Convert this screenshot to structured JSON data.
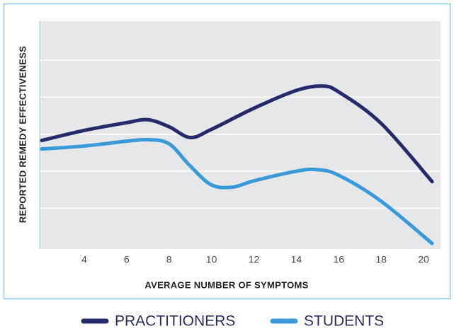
{
  "chart_data": {
    "type": "line",
    "xlabel": "AVERAGE NUMBER OF SYMPTOMS",
    "ylabel": "REPORTED REMEDY EFFECTIVENESS",
    "xlim": [
      1.9,
      20.8
    ],
    "xticks": [
      4,
      6,
      8,
      10,
      12,
      14,
      16,
      18,
      20
    ],
    "ylim": [
      -0.1,
      6.05
    ],
    "yticks": [
      1,
      2,
      3,
      4,
      5
    ],
    "grid": true,
    "series": [
      {
        "name": "PRACTITIONERS",
        "color": "#262a6b",
        "x": [
          2,
          4,
          6,
          7,
          8,
          9,
          10,
          12,
          14,
          15.2,
          16,
          18,
          20.4
        ],
        "values": [
          2.83,
          3.1,
          3.31,
          3.39,
          3.2,
          2.91,
          3.13,
          3.7,
          4.18,
          4.3,
          4.14,
          3.29,
          1.72
        ]
      },
      {
        "name": "STUDENTS",
        "color": "#3a9ad9",
        "x": [
          2,
          4,
          6,
          7,
          8,
          9,
          10,
          11,
          12,
          14,
          15,
          16,
          18,
          20.4
        ],
        "values": [
          2.6,
          2.68,
          2.81,
          2.85,
          2.74,
          2.14,
          1.63,
          1.57,
          1.74,
          2.0,
          2.04,
          1.89,
          1.19,
          0.05
        ]
      }
    ]
  }
}
